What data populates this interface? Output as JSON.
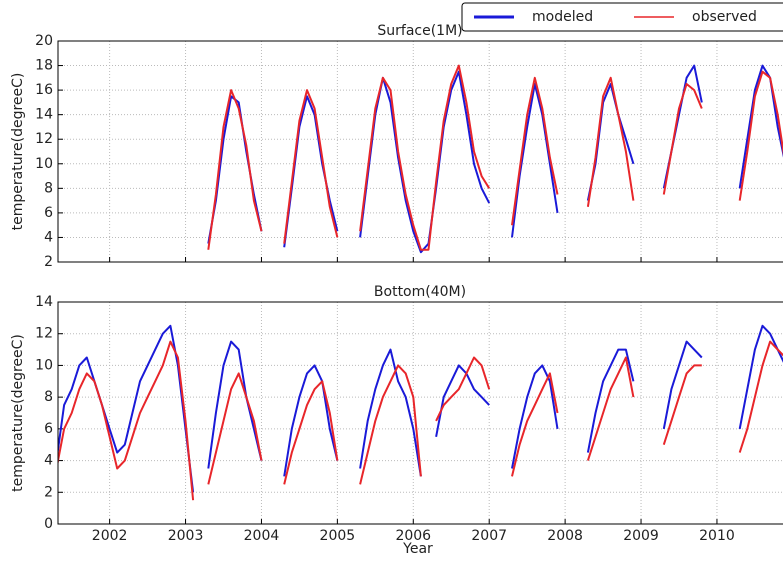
{
  "chart_data": [
    {
      "type": "line",
      "title": "Surface(1M)",
      "y_label": "temperature(degreeC)",
      "x": [
        2001.3,
        2001.4,
        2001.5,
        2001.6,
        2001.7,
        2001.8,
        2001.9,
        2002.0,
        2002.1,
        2002.2,
        2002.3,
        2002.4,
        2002.5,
        2002.6,
        2002.7,
        2002.8,
        2002.9,
        2003.0,
        2003.1,
        2003.2,
        2003.3,
        2003.4,
        2003.5,
        2003.6,
        2003.7,
        2003.8,
        2003.9,
        2004.0,
        2004.1,
        2004.2,
        2004.3,
        2004.4,
        2004.5,
        2004.6,
        2004.7,
        2004.8,
        2004.9,
        2005.0,
        2005.1,
        2005.2,
        2005.3,
        2005.4,
        2005.5,
        2005.6,
        2005.7,
        2005.8,
        2005.9,
        2006.0,
        2006.1,
        2006.2,
        2006.3,
        2006.4,
        2006.5,
        2006.6,
        2006.7,
        2006.8,
        2006.9,
        2007.0,
        2007.1,
        2007.2,
        2007.3,
        2007.4,
        2007.5,
        2007.6,
        2007.7,
        2007.8,
        2007.9,
        2008.0,
        2008.1,
        2008.2,
        2008.3,
        2008.4,
        2008.5,
        2008.6,
        2008.7,
        2008.8,
        2008.9,
        2009.0,
        2009.1,
        2009.2,
        2009.3,
        2009.4,
        2009.5,
        2009.6,
        2009.7,
        2009.8,
        2009.9,
        2010.0,
        2010.1,
        2010.2,
        2010.3,
        2010.4,
        2010.5,
        2010.6,
        2010.7,
        2010.8,
        2010.9
      ],
      "series": [
        {
          "name": "modeled",
          "color": "#1a1ad8",
          "values": [
            null,
            null,
            null,
            null,
            null,
            null,
            null,
            null,
            null,
            null,
            null,
            null,
            null,
            null,
            null,
            null,
            null,
            null,
            null,
            null,
            3.5,
            7,
            12,
            15.5,
            15,
            11,
            7.5,
            4.5,
            null,
            null,
            3.2,
            8,
            13,
            15.5,
            14,
            10,
            7,
            4.5,
            null,
            null,
            4,
            9,
            14,
            17,
            15,
            10.5,
            7,
            4.5,
            2.8,
            3.5,
            8,
            13,
            16,
            17.5,
            14,
            10,
            8,
            6.8,
            null,
            null,
            4,
            9,
            13,
            16.5,
            14,
            10,
            6,
            null,
            null,
            null,
            7,
            10,
            15,
            16.5,
            14,
            12,
            10,
            null,
            null,
            null,
            8,
            11,
            14,
            17,
            18,
            15,
            null,
            null,
            null,
            null,
            8,
            12,
            16,
            18,
            17,
            13,
            10
          ]
        },
        {
          "name": "observed",
          "color": "#e8262a",
          "values": [
            null,
            null,
            null,
            null,
            null,
            null,
            null,
            null,
            null,
            null,
            null,
            null,
            null,
            null,
            null,
            null,
            null,
            null,
            null,
            null,
            3,
            7.5,
            13,
            16,
            14.5,
            11.5,
            7,
            4.5,
            null,
            null,
            3.5,
            8.5,
            13.5,
            16,
            14.5,
            10.5,
            6.5,
            4,
            null,
            null,
            4.5,
            9.5,
            14.5,
            17,
            16,
            11,
            7.5,
            5,
            3,
            3,
            8.5,
            13.5,
            16.5,
            18,
            15,
            11,
            9,
            8,
            null,
            null,
            5,
            9.5,
            14,
            17,
            14.5,
            10.5,
            7.5,
            null,
            null,
            null,
            6.5,
            10.5,
            15.5,
            17,
            14,
            11,
            7,
            null,
            null,
            null,
            7.5,
            11,
            14.5,
            16.5,
            16,
            14.5,
            null,
            null,
            null,
            null,
            7,
            11,
            15.5,
            17.5,
            17,
            14,
            10
          ]
        }
      ],
      "xlim": [
        2001.32,
        2010.87
      ],
      "ylim": [
        2,
        20
      ],
      "yticks": [
        2,
        4,
        6,
        8,
        10,
        12,
        14,
        16,
        18,
        20
      ],
      "xticks": [
        2002,
        2003,
        2004,
        2005,
        2006,
        2007,
        2008,
        2009,
        2010
      ],
      "grid": true,
      "legend": "upper right"
    },
    {
      "type": "line",
      "title": "Bottom(40M)",
      "y_label": "temperature(degreeC)",
      "x_label": "Year",
      "x": [
        2001.3,
        2001.4,
        2001.5,
        2001.6,
        2001.7,
        2001.8,
        2001.9,
        2002.0,
        2002.1,
        2002.2,
        2002.3,
        2002.4,
        2002.5,
        2002.6,
        2002.7,
        2002.8,
        2002.9,
        2003.0,
        2003.1,
        2003.2,
        2003.3,
        2003.4,
        2003.5,
        2003.6,
        2003.7,
        2003.8,
        2003.9,
        2004.0,
        2004.1,
        2004.2,
        2004.3,
        2004.4,
        2004.5,
        2004.6,
        2004.7,
        2004.8,
        2004.9,
        2005.0,
        2005.1,
        2005.2,
        2005.3,
        2005.4,
        2005.5,
        2005.6,
        2005.7,
        2005.8,
        2005.9,
        2006.0,
        2006.1,
        2006.2,
        2006.3,
        2006.4,
        2006.5,
        2006.6,
        2006.7,
        2006.8,
        2006.9,
        2007.0,
        2007.1,
        2007.2,
        2007.3,
        2007.4,
        2007.5,
        2007.6,
        2007.7,
        2007.8,
        2007.9,
        2008.0,
        2008.1,
        2008.2,
        2008.3,
        2008.4,
        2008.5,
        2008.6,
        2008.7,
        2008.8,
        2008.9,
        2009.0,
        2009.1,
        2009.2,
        2009.3,
        2009.4,
        2009.5,
        2009.6,
        2009.7,
        2009.8,
        2009.9,
        2010.0,
        2010.1,
        2010.2,
        2010.3,
        2010.4,
        2010.5,
        2010.6,
        2010.7,
        2010.8,
        2010.9
      ],
      "series": [
        {
          "name": "modeled",
          "color": "#1a1ad8",
          "values": [
            4,
            7.5,
            8.5,
            10,
            10.5,
            9,
            7.5,
            6,
            4.5,
            5,
            7,
            9,
            10,
            11,
            12,
            12.5,
            10,
            6,
            2,
            null,
            3.5,
            7,
            10,
            11.5,
            11,
            8,
            6,
            4,
            null,
            null,
            3,
            6,
            8,
            9.5,
            10,
            9,
            6,
            4,
            null,
            null,
            3.5,
            6.5,
            8.5,
            10,
            11,
            9,
            8,
            6,
            3,
            null,
            5.5,
            8,
            9,
            10,
            9.5,
            8.5,
            8,
            7.5,
            null,
            null,
            3.5,
            6,
            8,
            9.5,
            10,
            9,
            6,
            null,
            null,
            null,
            4.5,
            7,
            9,
            10,
            11,
            11,
            9,
            null,
            null,
            null,
            6,
            8.5,
            10,
            11.5,
            11,
            10.5,
            null,
            null,
            null,
            null,
            6,
            8.5,
            11,
            12.5,
            12,
            11,
            10
          ]
        },
        {
          "name": "observed",
          "color": "#e8262a",
          "values": [
            3.5,
            6,
            7,
            8.5,
            9.5,
            9,
            7.5,
            5.5,
            3.5,
            4,
            5.5,
            7,
            8,
            9,
            10,
            11.5,
            10.5,
            6.5,
            1.5,
            null,
            2.5,
            4.5,
            6.5,
            8.5,
            9.5,
            8,
            6.5,
            4,
            null,
            null,
            2.5,
            4.5,
            6,
            7.5,
            8.5,
            9,
            7,
            4,
            null,
            null,
            2.5,
            4.5,
            6.5,
            8,
            9,
            10,
            9.5,
            8,
            3,
            null,
            6.5,
            7.5,
            8,
            8.5,
            9.5,
            10.5,
            10,
            8.5,
            null,
            null,
            3,
            5,
            6.5,
            7.5,
            8.5,
            9.5,
            7,
            null,
            null,
            null,
            4,
            5.5,
            7,
            8.5,
            9.5,
            10.5,
            8,
            null,
            null,
            null,
            5,
            6.5,
            8,
            9.5,
            10,
            10,
            null,
            null,
            null,
            null,
            4.5,
            6,
            8,
            10,
            11.5,
            11,
            10.5
          ]
        }
      ],
      "xlim": [
        2001.32,
        2010.87
      ],
      "ylim": [
        0,
        14
      ],
      "yticks": [
        0,
        2,
        4,
        6,
        8,
        10,
        12,
        14
      ],
      "xticks": [
        2002,
        2003,
        2004,
        2005,
        2006,
        2007,
        2008,
        2009,
        2010
      ],
      "grid": true
    }
  ]
}
